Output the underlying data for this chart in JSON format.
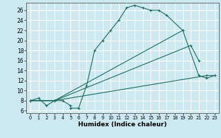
{
  "xlabel": "Humidex (Indice chaleur)",
  "bg_color": "#cce8f0",
  "grid_color": "#d8e8ee",
  "line_color": "#1a6b5a",
  "xlim": [
    -0.5,
    23.5
  ],
  "ylim": [
    5.5,
    27.5
  ],
  "xticks": [
    0,
    1,
    2,
    3,
    4,
    5,
    6,
    7,
    8,
    9,
    10,
    11,
    12,
    13,
    14,
    15,
    16,
    17,
    18,
    19,
    20,
    21,
    22,
    23
  ],
  "yticks": [
    6,
    8,
    10,
    12,
    14,
    16,
    18,
    20,
    22,
    24,
    26
  ],
  "line1_x": [
    0,
    1,
    2,
    3,
    4,
    5,
    5,
    6,
    7,
    8,
    9,
    10,
    11,
    12,
    13,
    14,
    15,
    16,
    17,
    19,
    21,
    22,
    23
  ],
  "line1_y": [
    8,
    8.5,
    7,
    8,
    8,
    7,
    6.5,
    6.5,
    11,
    18,
    20,
    22,
    24,
    26.5,
    27,
    26.5,
    26,
    26,
    25,
    22,
    13,
    12.5,
    13
  ],
  "line2_x": [
    0,
    3,
    19
  ],
  "line2_y": [
    8,
    8,
    22
  ],
  "line3_x": [
    0,
    3,
    20,
    21
  ],
  "line3_y": [
    8,
    8,
    19,
    16
  ],
  "line4_x": [
    0,
    3,
    22,
    23
  ],
  "line4_y": [
    8,
    8,
    13,
    13
  ]
}
